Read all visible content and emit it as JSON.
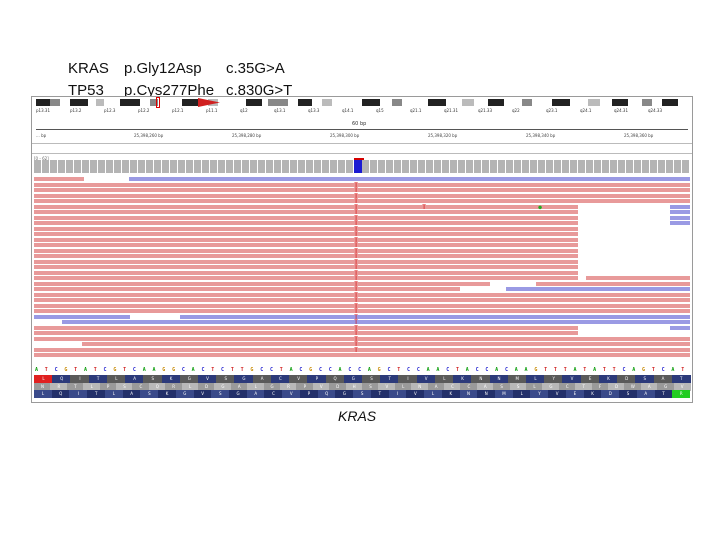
{
  "captions": {
    "kras_gene": "KRAS",
    "kras_protein": "p.Gly12Asp",
    "kras_cdna": "c.35G>A",
    "tp53_gene": "TP53",
    "tp53_protein": "p.Cys277Phe",
    "tp53_cdna": "c.830G>T"
  },
  "gene_label": "KRAS",
  "igv": {
    "track_label": "[0 - 62]",
    "ruler_scale": "60 bp",
    "band_labels": [
      "p13.31",
      "p13.2",
      "p12.3",
      "p12.2",
      "p12.1",
      "p11.1",
      "q12",
      "q13.1",
      "q13.3",
      "q14.1",
      "q15",
      "q21.1",
      "q21.31",
      "q21.33",
      "q22",
      "q23.1",
      "q24.1",
      "q24.31",
      "q24.33"
    ],
    "ruler_ticks": [
      "... bp",
      "25,398,260 bp",
      "25,398,280 bp",
      "25,398,300 bp",
      "25,398,320 bp",
      "25,398,340 bp",
      "25,398,360 bp"
    ],
    "mismatch_base": "T",
    "read_colors": {
      "forward": "#e89a9a",
      "reverse": "#9a9ae4",
      "coverage": "#b4b4b4",
      "variant": "#1a1ad2"
    },
    "reference_sequence": "ATCGTATCGTCAAGGCACTCTTGCCTACGCCACCAGCTCCAACTACCACAAGTTTATATTCAGTCAT",
    "amino_acids_1": "LQITLASKGVSGACVPQGSTIVLKNNMLYVEKDSAT",
    "amino_acids_2": "NRTLPSCQRLDGALGRPVDHSVLNACCASSLGCTFDWAGV",
    "amino_acids_3": "LQITLASKGVSGACVPQGSTIVLKNNMLYVEKDSATR"
  }
}
